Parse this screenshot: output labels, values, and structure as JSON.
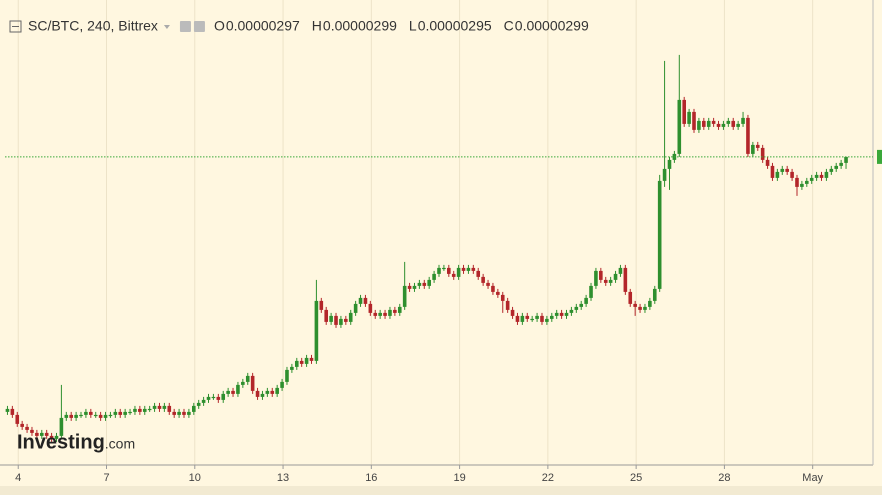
{
  "chart_data": {
    "type": "candlestick",
    "title": "SC/BTC, 240, Bittrex",
    "ohlc": [
      {
        "label": "O",
        "value": "0.00000297"
      },
      {
        "label": "H",
        "value": "0.00000299"
      },
      {
        "label": "L",
        "value": "0.00000295"
      },
      {
        "label": "C",
        "value": "0.00000299"
      }
    ],
    "watermark": [
      "Investing",
      ".com"
    ],
    "up_color": "#2e8f2e",
    "down_color": "#b3262a",
    "last_price_color": "#3aa83a",
    "ylim": [
      1.963e-06,
      3.513e-06
    ],
    "xlim": [
      -0.5,
      176.5
    ],
    "xticks": [
      {
        "value": 2.2,
        "label": "4"
      },
      {
        "value": 20.2,
        "label": "7"
      },
      {
        "value": 38.2,
        "label": "10"
      },
      {
        "value": 56.2,
        "label": "13"
      },
      {
        "value": 74.2,
        "label": "16"
      },
      {
        "value": 92.2,
        "label": "19"
      },
      {
        "value": 110.2,
        "label": "22"
      },
      {
        "value": 128.2,
        "label": "25"
      },
      {
        "value": 146.2,
        "label": "28"
      },
      {
        "value": 164.2,
        "label": "May"
      }
    ],
    "grid": true,
    "open": [
      2.14e-06,
      2.15e-06,
      2.13e-06,
      2.1e-06,
      2.09e-06,
      2.08e-06,
      2.07e-06,
      2.06e-06,
      2.07e-06,
      2.06e-06,
      2.05e-06,
      2.06e-06,
      2.12e-06,
      2.13e-06,
      2.12e-06,
      2.13e-06,
      2.13e-06,
      2.14e-06,
      2.13e-06,
      2.13e-06,
      2.12e-06,
      2.13e-06,
      2.13e-06,
      2.14e-06,
      2.13e-06,
      2.14e-06,
      2.14e-06,
      2.15e-06,
      2.14e-06,
      2.15e-06,
      2.15e-06,
      2.16e-06,
      2.15e-06,
      2.16e-06,
      2.14e-06,
      2.13e-06,
      2.14e-06,
      2.13e-06,
      2.14e-06,
      2.16e-06,
      2.17e-06,
      2.18e-06,
      2.19e-06,
      2.19e-06,
      2.18e-06,
      2.2e-06,
      2.21e-06,
      2.2e-06,
      2.23e-06,
      2.24e-06,
      2.26e-06,
      2.21e-06,
      2.19e-06,
      2.2e-06,
      2.21e-06,
      2.2e-06,
      2.22e-06,
      2.24e-06,
      2.28e-06,
      2.29e-06,
      2.31e-06,
      2.3e-06,
      2.32e-06,
      2.31e-06,
      2.51e-06,
      2.48e-06,
      2.44e-06,
      2.46e-06,
      2.43e-06,
      2.45e-06,
      2.44e-06,
      2.47e-06,
      2.5e-06,
      2.52e-06,
      2.5e-06,
      2.47e-06,
      2.46e-06,
      2.47e-06,
      2.46e-06,
      2.48e-06,
      2.47e-06,
      2.49e-06,
      2.56e-06,
      2.55e-06,
      2.56e-06,
      2.57e-06,
      2.56e-06,
      2.58e-06,
      2.6e-06,
      2.62e-06,
      2.62e-06,
      2.6e-06,
      2.59e-06,
      2.62e-06,
      2.61e-06,
      2.62e-06,
      2.61e-06,
      2.59e-06,
      2.57e-06,
      2.56e-06,
      2.54e-06,
      2.53e-06,
      2.51e-06,
      2.48e-06,
      2.46e-06,
      2.44e-06,
      2.46e-06,
      2.45e-06,
      2.45e-06,
      2.46e-06,
      2.44e-06,
      2.45e-06,
      2.46e-06,
      2.47e-06,
      2.46e-06,
      2.47e-06,
      2.48e-06,
      2.49e-06,
      2.5e-06,
      2.52e-06,
      2.56e-06,
      2.61e-06,
      2.58e-06,
      2.57e-06,
      2.58e-06,
      2.6e-06,
      2.62e-06,
      2.54e-06,
      2.5e-06,
      2.49e-06,
      2.48e-06,
      2.49e-06,
      2.51e-06,
      2.55e-06,
      2.91e-06,
      2.95e-06,
      2.98e-06,
      3e-06,
      3.18e-06,
      3.1e-06,
      3.14e-06,
      3.08e-06,
      3.11e-06,
      3.09e-06,
      3.11e-06,
      3.1e-06,
      3.09e-06,
      3.1e-06,
      3.11e-06,
      3.09e-06,
      3.1e-06,
      3.12e-06,
      3e-06,
      3.03e-06,
      3.02e-06,
      2.98e-06,
      2.96e-06,
      2.92e-06,
      2.94e-06,
      2.95e-06,
      2.94e-06,
      2.92e-06,
      2.89e-06,
      2.9e-06,
      2.91e-06,
      2.92e-06,
      2.93e-06,
      2.92e-06,
      2.94e-06,
      2.95e-06,
      2.96e-06,
      2.97e-06
    ],
    "high": [
      2.16e-06,
      2.16e-06,
      2.14e-06,
      2.11e-06,
      2.1e-06,
      2.09e-06,
      2.08e-06,
      2.08e-06,
      2.08e-06,
      2.07e-06,
      2.07e-06,
      2.23e-06,
      2.14e-06,
      2.14e-06,
      2.14e-06,
      2.14e-06,
      2.15e-06,
      2.15e-06,
      2.14e-06,
      2.14e-06,
      2.14e-06,
      2.14e-06,
      2.15e-06,
      2.15e-06,
      2.15e-06,
      2.15e-06,
      2.16e-06,
      2.16e-06,
      2.16e-06,
      2.16e-06,
      2.17e-06,
      2.17e-06,
      2.17e-06,
      2.17e-06,
      2.15e-06,
      2.15e-06,
      2.15e-06,
      2.15e-06,
      2.17e-06,
      2.18e-06,
      2.19e-06,
      2.2e-06,
      2.2e-06,
      2.2e-06,
      2.21e-06,
      2.22e-06,
      2.22e-06,
      2.24e-06,
      2.25e-06,
      2.27e-06,
      2.27e-06,
      2.22e-06,
      2.21e-06,
      2.22e-06,
      2.22e-06,
      2.23e-06,
      2.25e-06,
      2.29e-06,
      2.3e-06,
      2.32e-06,
      2.32e-06,
      2.33e-06,
      2.33e-06,
      2.58e-06,
      2.52e-06,
      2.49e-06,
      2.47e-06,
      2.47e-06,
      2.46e-06,
      2.46e-06,
      2.48e-06,
      2.51e-06,
      2.53e-06,
      2.53e-06,
      2.51e-06,
      2.48e-06,
      2.48e-06,
      2.48e-06,
      2.49e-06,
      2.49e-06,
      2.5e-06,
      2.64e-06,
      2.57e-06,
      2.57e-06,
      2.58e-06,
      2.58e-06,
      2.59e-06,
      2.61e-06,
      2.63e-06,
      2.63e-06,
      2.63e-06,
      2.61e-06,
      2.63e-06,
      2.63e-06,
      2.63e-06,
      2.63e-06,
      2.62e-06,
      2.6e-06,
      2.58e-06,
      2.57e-06,
      2.55e-06,
      2.54e-06,
      2.52e-06,
      2.49e-06,
      2.47e-06,
      2.47e-06,
      2.47e-06,
      2.46e-06,
      2.47e-06,
      2.47e-06,
      2.46e-06,
      2.47e-06,
      2.48e-06,
      2.48e-06,
      2.48e-06,
      2.49e-06,
      2.5e-06,
      2.51e-06,
      2.53e-06,
      2.57e-06,
      2.62e-06,
      2.62e-06,
      2.59e-06,
      2.59e-06,
      2.61e-06,
      2.63e-06,
      2.63e-06,
      2.55e-06,
      2.51e-06,
      2.5e-06,
      2.5e-06,
      2.52e-06,
      2.56e-06,
      2.93e-06,
      3.31e-06,
      2.99e-06,
      3.01e-06,
      3.33e-06,
      3.19e-06,
      3.15e-06,
      3.15e-06,
      3.12e-06,
      3.12e-06,
      3.12e-06,
      3.12e-06,
      3.11e-06,
      3.11e-06,
      3.12e-06,
      3.12e-06,
      3.11e-06,
      3.14e-06,
      3.13e-06,
      3.04e-06,
      3.04e-06,
      3.03e-06,
      2.99e-06,
      2.97e-06,
      2.95e-06,
      2.96e-06,
      2.96e-06,
      2.95e-06,
      2.93e-06,
      2.91e-06,
      2.92e-06,
      2.93e-06,
      2.94e-06,
      2.94e-06,
      2.95e-06,
      2.96e-06,
      2.97e-06,
      2.98e-06,
      2.99e-06
    ],
    "low": [
      2.13e-06,
      2.12e-06,
      2.09e-06,
      2.08e-06,
      2.07e-06,
      2.06e-06,
      2.05e-06,
      2.05e-06,
      2.05e-06,
      2.04e-06,
      2.04e-06,
      2.05e-06,
      2.11e-06,
      2.11e-06,
      2.11e-06,
      2.12e-06,
      2.12e-06,
      2.12e-06,
      2.12e-06,
      2.11e-06,
      2.11e-06,
      2.12e-06,
      2.12e-06,
      2.12e-06,
      2.12e-06,
      2.13e-06,
      2.13e-06,
      2.13e-06,
      2.13e-06,
      2.14e-06,
      2.14e-06,
      2.14e-06,
      2.14e-06,
      2.13e-06,
      2.12e-06,
      2.12e-06,
      2.12e-06,
      2.12e-06,
      2.13e-06,
      2.15e-06,
      2.16e-06,
      2.17e-06,
      2.18e-06,
      2.17e-06,
      2.17e-06,
      2.19e-06,
      2.19e-06,
      2.19e-06,
      2.22e-06,
      2.23e-06,
      2.2e-06,
      2.18e-06,
      2.18e-06,
      2.19e-06,
      2.19e-06,
      2.19e-06,
      2.21e-06,
      2.23e-06,
      2.27e-06,
      2.28e-06,
      2.29e-06,
      2.29e-06,
      2.3e-06,
      2.3e-06,
      2.47e-06,
      2.43e-06,
      2.43e-06,
      2.42e-06,
      2.42e-06,
      2.43e-06,
      2.43e-06,
      2.46e-06,
      2.49e-06,
      2.49e-06,
      2.46e-06,
      2.45e-06,
      2.45e-06,
      2.45e-06,
      2.45e-06,
      2.46e-06,
      2.46e-06,
      2.48e-06,
      2.54e-06,
      2.54e-06,
      2.55e-06,
      2.55e-06,
      2.55e-06,
      2.57e-06,
      2.59e-06,
      2.61e-06,
      2.59e-06,
      2.58e-06,
      2.58e-06,
      2.6e-06,
      2.6e-06,
      2.6e-06,
      2.58e-06,
      2.56e-06,
      2.55e-06,
      2.53e-06,
      2.52e-06,
      2.47e-06,
      2.47e-06,
      2.45e-06,
      2.43e-06,
      2.43e-06,
      2.44e-06,
      2.44e-06,
      2.44e-06,
      2.43e-06,
      2.43e-06,
      2.44e-06,
      2.45e-06,
      2.45e-06,
      2.45e-06,
      2.46e-06,
      2.47e-06,
      2.48e-06,
      2.49e-06,
      2.51e-06,
      2.55e-06,
      2.57e-06,
      2.56e-06,
      2.56e-06,
      2.57e-06,
      2.59e-06,
      2.53e-06,
      2.49e-06,
      2.46e-06,
      2.47e-06,
      2.47e-06,
      2.48e-06,
      2.5e-06,
      2.54e-06,
      2.89e-06,
      2.88e-06,
      2.97e-06,
      2.99e-06,
      3.09e-06,
      3.09e-06,
      3.07e-06,
      3.07e-06,
      3.08e-06,
      3.08e-06,
      3.09e-06,
      3.08e-06,
      3.08e-06,
      3.09e-06,
      3.08e-06,
      3.08e-06,
      3.09e-06,
      2.99e-06,
      2.99e-06,
      3.01e-06,
      2.97e-06,
      2.95e-06,
      2.91e-06,
      2.91e-06,
      2.93e-06,
      2.93e-06,
      2.91e-06,
      2.86e-06,
      2.88e-06,
      2.89e-06,
      2.9e-06,
      2.91e-06,
      2.91e-06,
      2.91e-06,
      2.93e-06,
      2.94e-06,
      2.95e-06,
      2.95e-06
    ],
    "close": [
      2.15e-06,
      2.13e-06,
      2.1e-06,
      2.09e-06,
      2.08e-06,
      2.07e-06,
      2.06e-06,
      2.07e-06,
      2.06e-06,
      2.05e-06,
      2.06e-06,
      2.12e-06,
      2.13e-06,
      2.12e-06,
      2.13e-06,
      2.13e-06,
      2.14e-06,
      2.13e-06,
      2.13e-06,
      2.12e-06,
      2.13e-06,
      2.13e-06,
      2.14e-06,
      2.13e-06,
      2.14e-06,
      2.14e-06,
      2.15e-06,
      2.14e-06,
      2.15e-06,
      2.15e-06,
      2.16e-06,
      2.15e-06,
      2.16e-06,
      2.14e-06,
      2.13e-06,
      2.14e-06,
      2.13e-06,
      2.14e-06,
      2.16e-06,
      2.17e-06,
      2.18e-06,
      2.19e-06,
      2.19e-06,
      2.18e-06,
      2.2e-06,
      2.21e-06,
      2.2e-06,
      2.23e-06,
      2.24e-06,
      2.26e-06,
      2.21e-06,
      2.19e-06,
      2.2e-06,
      2.21e-06,
      2.2e-06,
      2.22e-06,
      2.24e-06,
      2.28e-06,
      2.29e-06,
      2.31e-06,
      2.3e-06,
      2.32e-06,
      2.31e-06,
      2.51e-06,
      2.48e-06,
      2.44e-06,
      2.46e-06,
      2.43e-06,
      2.45e-06,
      2.44e-06,
      2.47e-06,
      2.5e-06,
      2.52e-06,
      2.5e-06,
      2.47e-06,
      2.46e-06,
      2.47e-06,
      2.46e-06,
      2.48e-06,
      2.47e-06,
      2.49e-06,
      2.56e-06,
      2.55e-06,
      2.56e-06,
      2.57e-06,
      2.56e-06,
      2.58e-06,
      2.6e-06,
      2.62e-06,
      2.62e-06,
      2.6e-06,
      2.59e-06,
      2.62e-06,
      2.61e-06,
      2.62e-06,
      2.61e-06,
      2.59e-06,
      2.57e-06,
      2.56e-06,
      2.54e-06,
      2.53e-06,
      2.51e-06,
      2.48e-06,
      2.46e-06,
      2.44e-06,
      2.46e-06,
      2.45e-06,
      2.45e-06,
      2.46e-06,
      2.44e-06,
      2.45e-06,
      2.46e-06,
      2.47e-06,
      2.46e-06,
      2.47e-06,
      2.48e-06,
      2.49e-06,
      2.5e-06,
      2.52e-06,
      2.56e-06,
      2.61e-06,
      2.58e-06,
      2.57e-06,
      2.58e-06,
      2.6e-06,
      2.62e-06,
      2.54e-06,
      2.5e-06,
      2.49e-06,
      2.48e-06,
      2.49e-06,
      2.51e-06,
      2.55e-06,
      2.91e-06,
      2.95e-06,
      2.98e-06,
      3e-06,
      3.18e-06,
      3.1e-06,
      3.14e-06,
      3.08e-06,
      3.11e-06,
      3.09e-06,
      3.11e-06,
      3.1e-06,
      3.09e-06,
      3.1e-06,
      3.11e-06,
      3.09e-06,
      3.1e-06,
      3.12e-06,
      3e-06,
      3.03e-06,
      3.02e-06,
      2.98e-06,
      2.96e-06,
      2.92e-06,
      2.94e-06,
      2.95e-06,
      2.94e-06,
      2.92e-06,
      2.89e-06,
      2.9e-06,
      2.91e-06,
      2.92e-06,
      2.93e-06,
      2.92e-06,
      2.94e-06,
      2.95e-06,
      2.96e-06,
      2.97e-06,
      2.99e-06
    ]
  }
}
